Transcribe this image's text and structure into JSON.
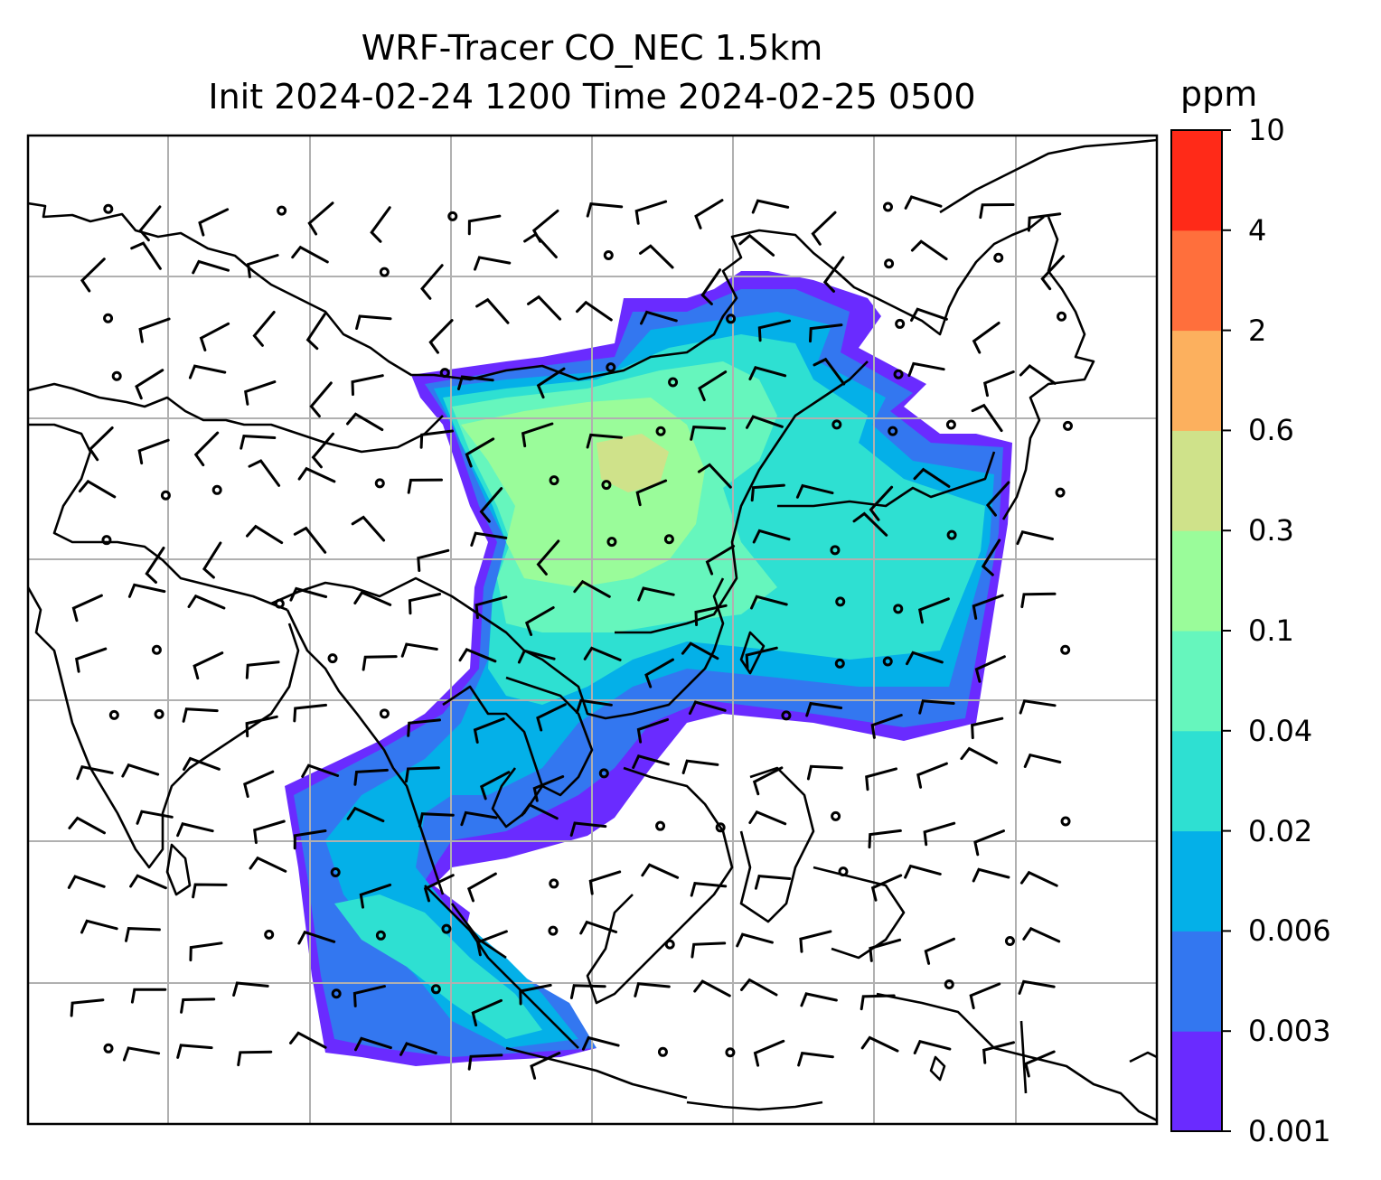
{
  "title": {
    "line1": "WRF-Tracer CO_NEC 1.5km",
    "line2": "Init 2024-02-24 1200 Time 2024-02-25 0500"
  },
  "colorbar": {
    "unit": "ppm",
    "levels": [
      "0.001",
      "0.003",
      "0.006",
      "0.02",
      "0.04",
      "0.1",
      "0.3",
      "0.6",
      "2",
      "4",
      "10"
    ],
    "colors": [
      "#6a2bff",
      "#3377f0",
      "#04b0e8",
      "#2ee0d2",
      "#66f6bd",
      "#9afc9a",
      "#cfe28a",
      "#fcb05e",
      "#ff6f3c",
      "#ff2a18"
    ]
  },
  "map": {
    "gridlines": true,
    "field": "CO_NEC tracer concentration",
    "overlay": "wind barbs"
  }
}
